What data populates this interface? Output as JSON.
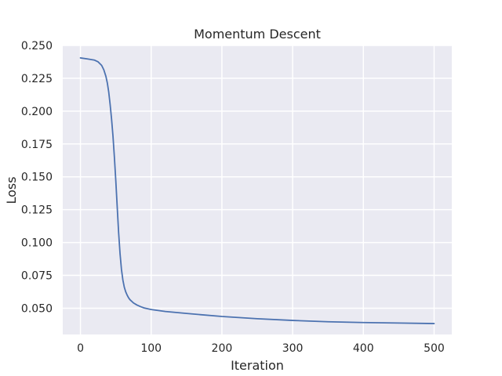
{
  "chart_data": {
    "type": "line",
    "title": "Momentum Descent",
    "xlabel": "Iteration",
    "ylabel": "Loss",
    "xlim": [
      -25,
      525
    ],
    "ylim": [
      0.03,
      0.25
    ],
    "xticks": [
      0,
      100,
      200,
      300,
      400,
      500
    ],
    "yticks": [
      0.05,
      0.075,
      0.1,
      0.125,
      0.15,
      0.175,
      0.2,
      0.225,
      0.25
    ],
    "xtick_labels": [
      "0",
      "100",
      "200",
      "300",
      "400",
      "500"
    ],
    "ytick_labels": [
      "0.050",
      "0.075",
      "0.100",
      "0.125",
      "0.150",
      "0.175",
      "0.200",
      "0.225",
      "0.250"
    ],
    "grid": true,
    "colors": {
      "background": "#eaeaf2",
      "grid": "#ffffff",
      "line": "#4c72b0"
    },
    "series": [
      {
        "x": [
          0,
          10,
          20,
          25,
          30,
          33,
          36,
          38,
          40,
          42,
          44,
          46,
          48,
          50,
          52,
          54,
          56,
          58,
          60,
          62,
          64,
          66,
          68,
          70,
          75,
          80,
          85,
          90,
          100,
          120,
          150,
          200,
          250,
          300,
          350,
          400,
          450,
          500
        ],
        "y": [
          0.2405,
          0.2397,
          0.2388,
          0.2375,
          0.2348,
          0.2315,
          0.2265,
          0.2215,
          0.2145,
          0.205,
          0.194,
          0.181,
          0.165,
          0.147,
          0.127,
          0.1075,
          0.0915,
          0.0795,
          0.0715,
          0.066,
          0.0625,
          0.06,
          0.058,
          0.0565,
          0.054,
          0.0524,
          0.0512,
          0.0502,
          0.049,
          0.0475,
          0.046,
          0.0437,
          0.042,
          0.0407,
          0.0397,
          0.0391,
          0.0387,
          0.0383
        ]
      }
    ]
  }
}
